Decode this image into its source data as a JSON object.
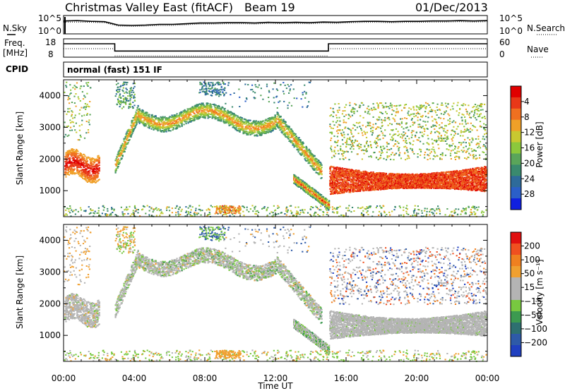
{
  "header": {
    "title": "Christmas Valley East (fitACF)",
    "beam": "Beam 19",
    "date": "01/Dec/2013"
  },
  "noise_panel": {
    "ylabel": "N.Sky",
    "ytick_top": "10^5",
    "ytick_bottom": "10^0",
    "right_label": "N.Search",
    "right_ytick_top": "10^5",
    "right_ytick_bottom": "10^0",
    "sky_series": [
      3.6,
      3.7,
      3.5,
      3.4,
      2.4,
      2.3,
      2.4,
      2.6,
      2.6,
      2.8,
      3.0,
      3.0,
      3.1,
      3.1,
      3.0,
      3.2,
      3.1,
      3.2,
      3.1,
      3.3,
      3.2,
      3.4,
      3.5,
      3.5,
      3.4,
      3.5,
      3.5,
      3.6,
      3.6,
      3.7,
      3.6,
      3.7
    ],
    "search_series": [
      3.3,
      3.3,
      3.2,
      3.1,
      2.1,
      2.0,
      2.1,
      2.3,
      2.3,
      2.5,
      2.7,
      2.7,
      2.8,
      2.8,
      2.7,
      2.9,
      2.8,
      2.9,
      2.8,
      3.0,
      2.9,
      3.1,
      3.2,
      3.2,
      3.1,
      3.2,
      3.2,
      3.3,
      3.3,
      3.4,
      3.3,
      3.4
    ]
  },
  "freq_panel": {
    "ylabel_1": "Freq.",
    "ylabel_2": "[MHz]",
    "ytick_top": "18",
    "ytick_bottom": "8",
    "right_label": "Nave",
    "right_ytick_top": "60",
    "right_ytick_bottom": "0",
    "steps": [
      {
        "t0": 0,
        "t1": 2.9,
        "f": 15.5
      },
      {
        "t0": 2.9,
        "t1": 15.0,
        "f": 11.2
      },
      {
        "t0": 15.0,
        "t1": 24,
        "f": 15.5
      }
    ],
    "nave_level": 0.3
  },
  "cpid": {
    "label": "CPID",
    "value": "normal (fast) 151 IF"
  },
  "chart_data": [
    {
      "type": "heatmap",
      "name": "power",
      "ylabel": "Slant Range [km]",
      "xlabel": "",
      "xlim": [
        0,
        24
      ],
      "ylim": [
        180,
        4500
      ],
      "yticks": [
        "1000",
        "2000",
        "3000",
        "4000"
      ],
      "colorbar_label": "Power [dB]",
      "colorbar_ticks": [
        "4",
        "8",
        "12",
        "16",
        "20",
        "24",
        "28"
      ],
      "colorbar_colors": [
        "#1020e0",
        "#2b5fc8",
        "#2e6b9a",
        "#3a8a6e",
        "#5aa55a",
        "#8cc83c",
        "#c8c830",
        "#f0a028",
        "#f07020",
        "#e83818",
        "#e00000"
      ]
    },
    {
      "type": "heatmap",
      "name": "velocity",
      "ylabel": "Slant Range [km]",
      "xlabel": "Time UT",
      "xlim": [
        0,
        24
      ],
      "ylim": [
        180,
        4500
      ],
      "xticks": [
        "00:00",
        "04:00",
        "08:00",
        "12:00",
        "16:00",
        "20:00",
        "00:00"
      ],
      "yticks": [
        "1000",
        "2000",
        "3000",
        "4000"
      ],
      "colorbar_label": "Velocity [m s⁻¹]",
      "colorbar_ticks": [
        "200",
        "100",
        "50",
        "15",
        "−15",
        "−50",
        "−100",
        "−200"
      ],
      "colorbar_colors": [
        "#2040c0",
        "#2e5aa8",
        "#2e7070",
        "#3c9a50",
        "#78c840",
        "#b4b4b4",
        "#b4b4b4",
        "#f0a030",
        "#f08020",
        "#f05020",
        "#e01010"
      ]
    }
  ]
}
